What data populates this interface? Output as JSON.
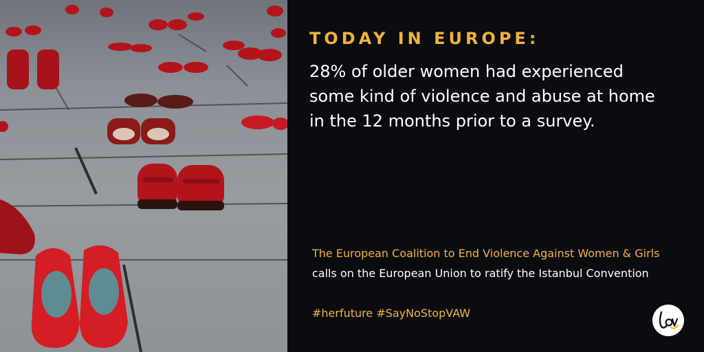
{
  "image": {
    "description_icon": "red-shoes-photo"
  },
  "text": {
    "headline": "TODAY IN EUROPE:",
    "statistic": "28% of older women had experienced some kind of violence and abuse at home in the 12 months prior to a survey.",
    "coalition": "The European Coalition to End Violence Against Women & Girls",
    "call_to_action": "calls on the European Union  to ratify the Istanbul Convention",
    "hashtags": "#herfuture #SayNoStopVAW"
  },
  "logo": {
    "icon": "love-logo-icon"
  },
  "colors": {
    "background": "#0b0c10",
    "accent": "#f2b33a",
    "text": "#ffffff",
    "shoe_red": "#c8161d"
  }
}
